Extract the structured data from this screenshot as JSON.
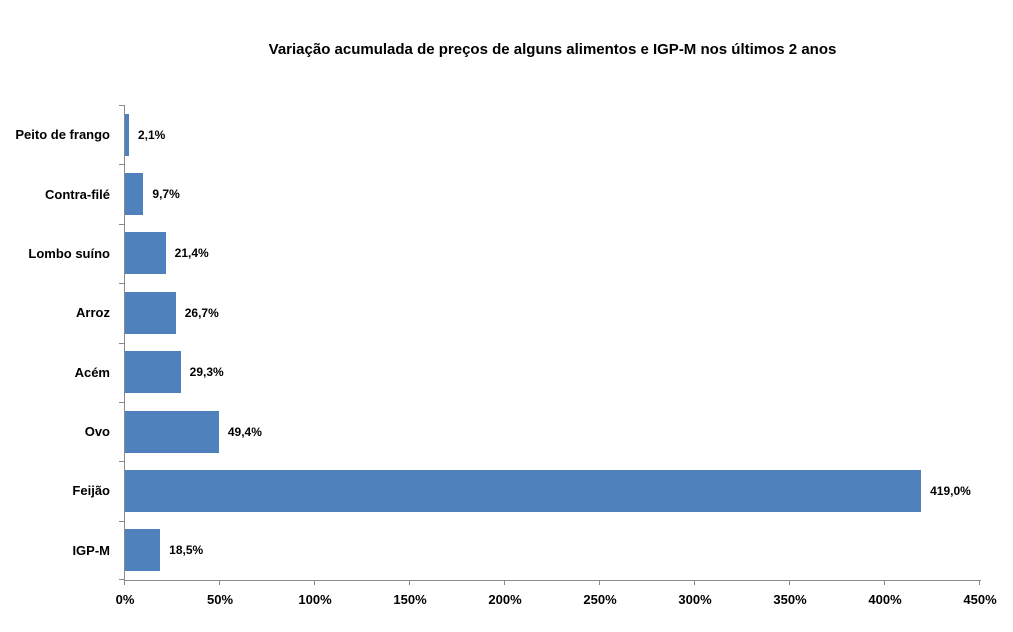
{
  "chart_data": {
    "type": "bar",
    "orientation": "horizontal",
    "title": "Variação acumulada de preços de alguns alimentos e IGP-M nos últimos 2 anos",
    "categories_order": "top-to-bottom",
    "categories": [
      "Peito de frango",
      "Contra-filé",
      "Lombo suíno",
      "Arroz",
      "Acém",
      "Ovo",
      "Feijão",
      "IGP-M"
    ],
    "values": [
      2.1,
      9.7,
      21.4,
      26.7,
      29.3,
      49.4,
      419.0,
      18.5
    ],
    "data_labels": [
      "2,1%",
      "9,7%",
      "21,4%",
      "26,7%",
      "29,3%",
      "49,4%",
      "419,0%",
      "18,5%"
    ],
    "x_tick_labels": [
      "0%",
      "50%",
      "100%",
      "150%",
      "200%",
      "250%",
      "300%",
      "350%",
      "400%",
      "450%"
    ],
    "xlim": [
      0,
      450
    ],
    "xlabel": "",
    "ylabel": "",
    "grid": false,
    "legend": "none",
    "bar_color": "#4F81BD",
    "axis_color": "#8a8a8a",
    "text_color": "#000000",
    "background_color": "#FFFFFF"
  }
}
